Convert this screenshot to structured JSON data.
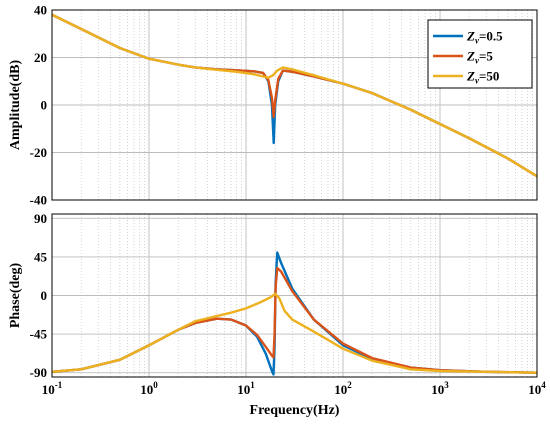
{
  "chart_data": {
    "type": "line",
    "figure": "Bode plot",
    "x_scale": "log",
    "xlim": [
      0.1,
      10000
    ],
    "xlabel": "Frequency(Hz)",
    "x_tick_labels": [
      {
        "base": "10",
        "exp": "-1"
      },
      {
        "base": "10",
        "exp": "0"
      },
      {
        "base": "10",
        "exp": "1"
      },
      {
        "base": "10",
        "exp": "2"
      },
      {
        "base": "10",
        "exp": "3"
      },
      {
        "base": "10",
        "exp": "4"
      }
    ],
    "grid": "on (major solid, minor dotted)",
    "legend_placement": "top-right of upper plot",
    "series_colors": [
      "#0072BD",
      "#D95319",
      "#EDB120"
    ],
    "legend": [
      {
        "sym": "Z",
        "sub": "v",
        "label": "=0.5",
        "color": "#0072BD"
      },
      {
        "sym": "Z",
        "sub": "v",
        "label": "=5",
        "color": "#D95319"
      },
      {
        "sym": "Z",
        "sub": "v",
        "label": "=50",
        "color": "#EDB120"
      }
    ],
    "panels": [
      {
        "ylabel": "Amplitude(dB)",
        "ylim": [
          -40,
          40
        ],
        "yticks": [
          -40,
          -20,
          0,
          20,
          40
        ],
        "series": [
          {
            "name": "Zv=0.5",
            "color": "#0072BD",
            "points": [
              [
                0.1,
                38
              ],
              [
                0.2,
                32
              ],
              [
                0.5,
                24
              ],
              [
                1,
                19.5
              ],
              [
                2,
                17
              ],
              [
                3,
                15.8
              ],
              [
                5,
                15
              ],
              [
                8,
                14.6
              ],
              [
                12,
                14.2
              ],
              [
                15,
                13.5
              ],
              [
                17,
                10
              ],
              [
                18.5,
                0
              ],
              [
                19.3,
                -16
              ],
              [
                20,
                0
              ],
              [
                21.5,
                10
              ],
              [
                24,
                14.5
              ],
              [
                30,
                14
              ],
              [
                50,
                12
              ],
              [
                100,
                9
              ],
              [
                200,
                5
              ],
              [
                500,
                -2
              ],
              [
                1000,
                -8
              ],
              [
                2000,
                -14
              ],
              [
                5000,
                -22.5
              ],
              [
                10000,
                -30
              ]
            ]
          },
          {
            "name": "Zv=5",
            "color": "#D95319",
            "points": [
              [
                0.1,
                38
              ],
              [
                0.2,
                32
              ],
              [
                0.5,
                24
              ],
              [
                1,
                19.5
              ],
              [
                2,
                17
              ],
              [
                3,
                15.8
              ],
              [
                5,
                15
              ],
              [
                8,
                14.6
              ],
              [
                12,
                14.2
              ],
              [
                15,
                13.5
              ],
              [
                17,
                10.5
              ],
              [
                18.5,
                3
              ],
              [
                19.3,
                -5
              ],
              [
                20,
                2
              ],
              [
                21.5,
                11
              ],
              [
                24,
                14.5
              ],
              [
                30,
                14
              ],
              [
                50,
                12
              ],
              [
                100,
                9
              ],
              [
                200,
                5
              ],
              [
                500,
                -2
              ],
              [
                1000,
                -8
              ],
              [
                2000,
                -14
              ],
              [
                5000,
                -22.5
              ],
              [
                10000,
                -30
              ]
            ]
          },
          {
            "name": "Zv=50",
            "color": "#EDB120",
            "points": [
              [
                0.1,
                38
              ],
              [
                0.2,
                32
              ],
              [
                0.5,
                24
              ],
              [
                1,
                19.5
              ],
              [
                2,
                17
              ],
              [
                3,
                15.8
              ],
              [
                5,
                14.8
              ],
              [
                8,
                14
              ],
              [
                12,
                13
              ],
              [
                15,
                12
              ],
              [
                17,
                11.5
              ],
              [
                19,
                12.5
              ],
              [
                21,
                14.5
              ],
              [
                24,
                15.8
              ],
              [
                30,
                15
              ],
              [
                50,
                12.5
              ],
              [
                100,
                9
              ],
              [
                200,
                5
              ],
              [
                500,
                -2
              ],
              [
                1000,
                -8
              ],
              [
                2000,
                -14
              ],
              [
                5000,
                -22.5
              ],
              [
                10000,
                -30
              ]
            ]
          }
        ]
      },
      {
        "ylabel": "Phase(deg)",
        "ylim": [
          -95,
          95
        ],
        "yticks": [
          -90,
          -45,
          0,
          45,
          90
        ],
        "series": [
          {
            "name": "Zv=0.5",
            "color": "#0072BD",
            "points": [
              [
                0.1,
                -89
              ],
              [
                0.2,
                -86
              ],
              [
                0.5,
                -75
              ],
              [
                1,
                -58
              ],
              [
                2,
                -40
              ],
              [
                3,
                -32
              ],
              [
                5,
                -27
              ],
              [
                7,
                -28
              ],
              [
                10,
                -35
              ],
              [
                13,
                -48
              ],
              [
                16,
                -68
              ],
              [
                18.5,
                -88
              ],
              [
                19.2,
                -92
              ],
              [
                19.7,
                -60
              ],
              [
                20.2,
                15
              ],
              [
                21,
                50
              ],
              [
                23,
                38
              ],
              [
                30,
                8
              ],
              [
                50,
                -28
              ],
              [
                100,
                -58
              ],
              [
                200,
                -74
              ],
              [
                500,
                -84
              ],
              [
                1000,
                -87
              ],
              [
                3000,
                -89
              ],
              [
                10000,
                -90
              ]
            ]
          },
          {
            "name": "Zv=5",
            "color": "#D95319",
            "points": [
              [
                0.1,
                -89
              ],
              [
                0.2,
                -86
              ],
              [
                0.5,
                -75
              ],
              [
                1,
                -58
              ],
              [
                2,
                -40
              ],
              [
                3,
                -32
              ],
              [
                5,
                -27
              ],
              [
                7,
                -28
              ],
              [
                10,
                -35
              ],
              [
                13,
                -46
              ],
              [
                16,
                -60
              ],
              [
                18.5,
                -70
              ],
              [
                19.2,
                -72
              ],
              [
                19.7,
                -45
              ],
              [
                20.2,
                10
              ],
              [
                21,
                32
              ],
              [
                23,
                28
              ],
              [
                30,
                5
              ],
              [
                50,
                -28
              ],
              [
                100,
                -56
              ],
              [
                200,
                -73
              ],
              [
                500,
                -84
              ],
              [
                1000,
                -87
              ],
              [
                3000,
                -89
              ],
              [
                10000,
                -90
              ]
            ]
          },
          {
            "name": "Zv=50",
            "color": "#EDB120",
            "points": [
              [
                0.1,
                -89
              ],
              [
                0.2,
                -86
              ],
              [
                0.5,
                -75
              ],
              [
                1,
                -58
              ],
              [
                2,
                -40
              ],
              [
                3,
                -30
              ],
              [
                5,
                -24
              ],
              [
                7,
                -20
              ],
              [
                10,
                -15
              ],
              [
                14,
                -8
              ],
              [
                18,
                -2
              ],
              [
                20,
                2
              ],
              [
                22,
                -3
              ],
              [
                25,
                -18
              ],
              [
                30,
                -28
              ],
              [
                50,
                -42
              ],
              [
                100,
                -62
              ],
              [
                200,
                -76
              ],
              [
                500,
                -86
              ],
              [
                1000,
                -88
              ],
              [
                3000,
                -89
              ],
              [
                10000,
                -90
              ]
            ]
          }
        ]
      }
    ]
  }
}
